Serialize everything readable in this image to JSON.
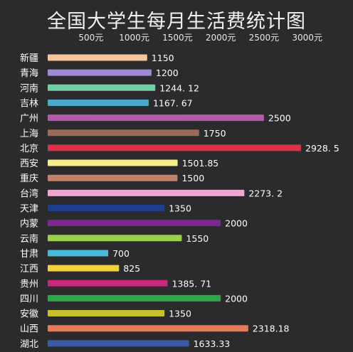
{
  "chart_data": {
    "type": "bar",
    "orientation": "horizontal",
    "title": "全国大学生每月生活费统计图",
    "xlabel": "",
    "ylabel": "",
    "x_ticks": [
      "500元",
      "1000元",
      "1500元",
      "2000元",
      "2500元",
      "3000元"
    ],
    "x_tick_values": [
      500,
      1000,
      1500,
      2000,
      2500,
      3000
    ],
    "xlim": [
      0,
      3000
    ],
    "grid": false,
    "categories": [
      "新疆",
      "青海",
      "河南",
      "吉林",
      "广州",
      "上海",
      "北京",
      "西安",
      "重庆",
      "台湾",
      "天津",
      "内蒙",
      "云南",
      "甘肃",
      "江西",
      "贵州",
      "四川",
      "安徽",
      "山西",
      "湖北"
    ],
    "values": [
      1150,
      1200,
      1244.12,
      1167.67,
      2500,
      1750,
      2928.5,
      1501.85,
      1500,
      2273.2,
      1350,
      2000,
      1550,
      700,
      825,
      1385.71,
      2000,
      1350,
      2318.18,
      1633.33
    ],
    "value_labels": [
      "1150",
      "1200",
      "1244. 12",
      "1167. 67",
      "2500",
      "1750",
      "2928. 5",
      "1501.85",
      "1500",
      "2273. 2",
      "1350",
      "2000",
      "1550",
      "700",
      "825",
      "1385. 71",
      "2000",
      "1350",
      "2318.18",
      "1633.33"
    ],
    "colors": [
      "#f4c49a",
      "#a08ad6",
      "#6fcfa6",
      "#4da8c8",
      "#b55aa6",
      "#9a6a5a",
      "#d8334a",
      "#f5ee8a",
      "#c2836a",
      "#f0a6d2",
      "#1f3f8e",
      "#7a2a8a",
      "#9ad04a",
      "#4ab8d8",
      "#f2d23a",
      "#c8287a",
      "#2aa84a",
      "#c8c028",
      "#e87a5a",
      "#3a5aa8"
    ]
  }
}
